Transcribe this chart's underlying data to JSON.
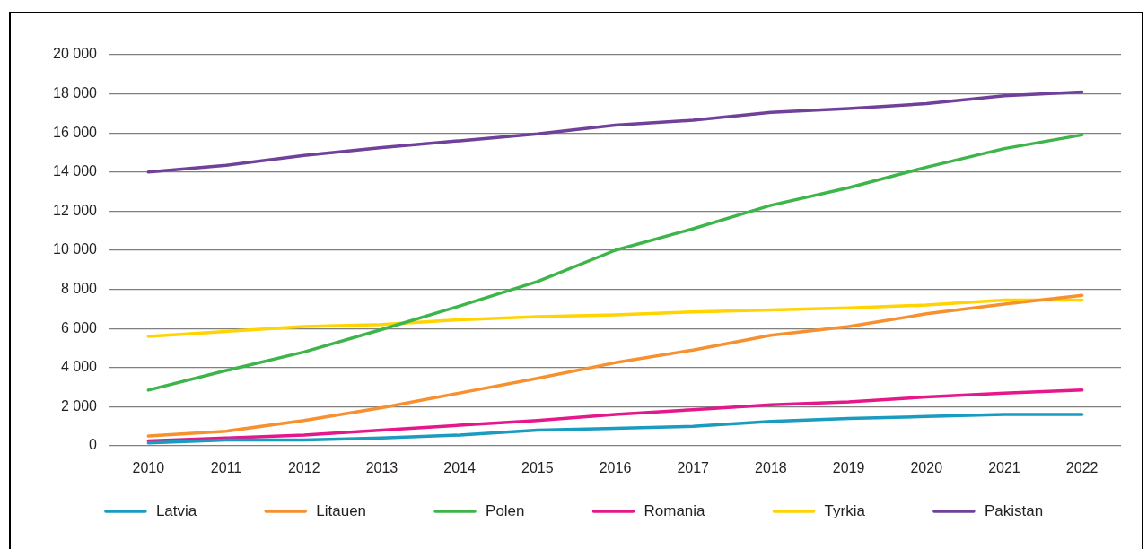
{
  "chart_data": {
    "type": "line",
    "categories": [
      "2010",
      "2011",
      "2012",
      "2013",
      "2014",
      "2015",
      "2016",
      "2017",
      "2018",
      "2019",
      "2020",
      "2021",
      "2022"
    ],
    "series": [
      {
        "name": "Latvia",
        "color": "#1a9bc0",
        "values": [
          150,
          300,
          300,
          400,
          550,
          800,
          900,
          1000,
          1250,
          1400,
          1500,
          1600,
          1600
        ]
      },
      {
        "name": "Litauen",
        "color": "#f7902f",
        "values": [
          500,
          750,
          1300,
          1950,
          2700,
          3450,
          4250,
          4900,
          5650,
          6100,
          6750,
          7250,
          7700
        ]
      },
      {
        "name": "Polen",
        "color": "#3db54a",
        "values": [
          2850,
          3850,
          4800,
          5950,
          7150,
          8400,
          10000,
          11100,
          12300,
          13200,
          14250,
          15200,
          15900
        ]
      },
      {
        "name": "Romania",
        "color": "#e6168b",
        "values": [
          250,
          400,
          550,
          800,
          1050,
          1300,
          1600,
          1850,
          2100,
          2250,
          2500,
          2700,
          2850
        ]
      },
      {
        "name": "Tyrkia",
        "color": "#ffd400",
        "values": [
          5600,
          5850,
          6100,
          6200,
          6450,
          6600,
          6700,
          6850,
          6950,
          7050,
          7200,
          7450,
          7450
        ]
      },
      {
        "name": "Pakistan",
        "color": "#70409a",
        "values": [
          14000,
          14350,
          14850,
          15250,
          15600,
          15950,
          16400,
          16650,
          17050,
          17250,
          17500,
          17900,
          18100
        ]
      }
    ],
    "ylim": [
      0,
      20000
    ],
    "yticks": [
      0,
      {
        "value": 2000,
        "label": "2 000"
      },
      {
        "value": 4000,
        "label": "4 000"
      },
      {
        "value": 6000,
        "label": "6 000"
      },
      {
        "value": 8000,
        "label": "8 000"
      },
      {
        "value": 10000,
        "label": "10 000"
      },
      {
        "value": 12000,
        "label": "12 000"
      },
      {
        "value": 14000,
        "label": "14 000"
      },
      {
        "value": 16000,
        "label": "16 000"
      },
      {
        "value": 18000,
        "label": "18 000"
      },
      {
        "value": 20000,
        "label": "20 000"
      }
    ],
    "grid": "y",
    "legend": "bottom",
    "marker": "none"
  }
}
